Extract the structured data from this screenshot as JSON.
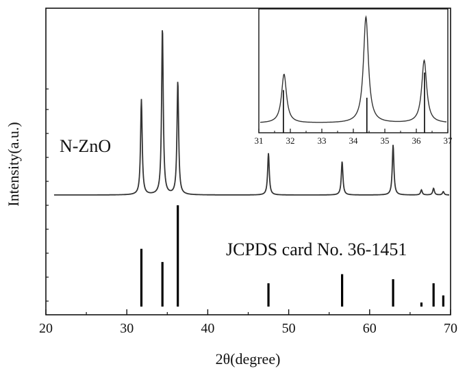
{
  "chart_data": [
    {
      "type": "line",
      "xlabel": "2θ(degree)",
      "ylabel": "Intensity(a.u.)",
      "xlim": [
        20,
        70
      ],
      "xticks": [
        20,
        30,
        40,
        50,
        60,
        70
      ],
      "grid": false,
      "series": [
        {
          "name": "N-ZnO",
          "kind": "xrd-pattern",
          "baseline": 0,
          "peaks": [
            {
              "x": 31.8,
              "height": 0.57
            },
            {
              "x": 34.4,
              "height": 1.0
            },
            {
              "x": 36.3,
              "height": 0.68
            },
            {
              "x": 47.5,
              "height": 0.25
            },
            {
              "x": 56.6,
              "height": 0.2
            },
            {
              "x": 62.9,
              "height": 0.3
            },
            {
              "x": 66.4,
              "height": 0.03
            },
            {
              "x": 67.9,
              "height": 0.04
            },
            {
              "x": 69.1,
              "height": 0.02
            }
          ]
        },
        {
          "name": "JCPDS card No. 36-1451",
          "kind": "reference-sticks",
          "sticks": [
            {
              "x": 31.8,
              "height": 0.57
            },
            {
              "x": 34.4,
              "height": 0.44
            },
            {
              "x": 36.3,
              "height": 1.0
            },
            {
              "x": 47.5,
              "height": 0.23
            },
            {
              "x": 56.6,
              "height": 0.32
            },
            {
              "x": 62.9,
              "height": 0.27
            },
            {
              "x": 66.4,
              "height": 0.04
            },
            {
              "x": 67.9,
              "height": 0.23
            },
            {
              "x": 69.1,
              "height": 0.11
            }
          ]
        }
      ]
    },
    {
      "type": "line",
      "role": "inset",
      "xlim": [
        31,
        37
      ],
      "xticks": [
        31,
        32,
        33,
        34,
        35,
        36,
        37
      ],
      "series": [
        {
          "kind": "xrd-pattern",
          "peaks": [
            {
              "x": 31.8,
              "height": 0.46
            },
            {
              "x": 34.4,
              "height": 1.0
            },
            {
              "x": 36.25,
              "height": 0.59
            }
          ]
        },
        {
          "kind": "reference-sticks",
          "sticks": [
            {
              "x": 31.78,
              "height": 0.39
            },
            {
              "x": 34.43,
              "height": 0.32
            },
            {
              "x": 36.26,
              "height": 0.55
            }
          ]
        }
      ]
    }
  ]
}
